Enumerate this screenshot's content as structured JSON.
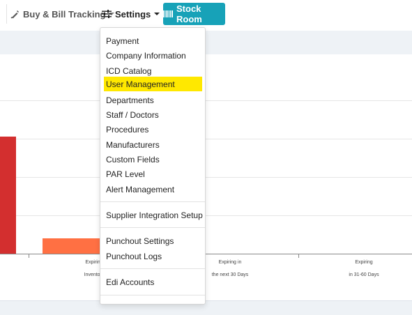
{
  "topnav": {
    "buy_bill": "Buy & Bill Tracking",
    "settings": "Settings",
    "stock_room": "Stock Room",
    "stock_room_color": "#17a2b8"
  },
  "settings_menu": {
    "items": [
      "Payment",
      "Company Information",
      "ICD Catalog",
      "User Management",
      "Departments",
      "Staff / Doctors",
      "Procedures",
      "Manufacturers",
      "Custom Fields",
      "PAR Level",
      "Alert Management",
      "Supplier Integration Setup",
      "Punchout Settings",
      "Punchout Logs",
      "Edi Accounts"
    ],
    "highlighted": "User Management",
    "highlight_color": "#ffe800"
  },
  "chart_data": {
    "type": "bar",
    "categories": [
      [
        "Expiring",
        "Inventory"
      ],
      [
        "Expiring in",
        "the next 30 Days"
      ],
      [
        "Expiring",
        "in 31-60 Days"
      ]
    ],
    "series_colors": [
      "#d32f2f",
      "#ff7043"
    ]
  }
}
